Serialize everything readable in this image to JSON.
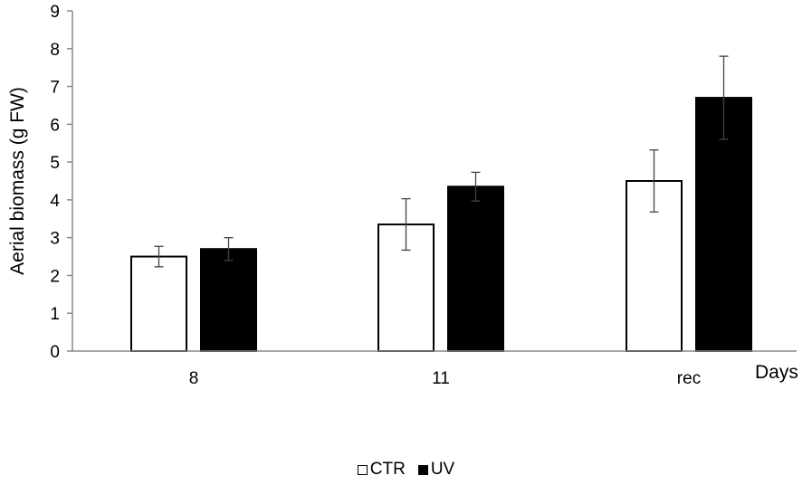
{
  "chart_data": {
    "type": "bar",
    "title": "",
    "xlabel": "Days",
    "ylabel": "Aerial biomass (g FW)",
    "ylim": [
      0,
      9
    ],
    "yticks": [
      0,
      1,
      2,
      3,
      4,
      5,
      6,
      7,
      8,
      9
    ],
    "grid": false,
    "legend_position": "bottom-center",
    "categories": [
      "8",
      "11",
      "rec"
    ],
    "series": [
      {
        "name": "CTR",
        "color": "#ffffff",
        "edge_color": "#000000",
        "values": [
          2.5,
          3.35,
          4.5
        ],
        "error": [
          0.27,
          0.68,
          0.82
        ]
      },
      {
        "name": "UV",
        "color": "#000000",
        "edge_color": "#000000",
        "values": [
          2.7,
          4.35,
          6.7
        ],
        "error": [
          0.3,
          0.38,
          1.1
        ]
      }
    ]
  }
}
